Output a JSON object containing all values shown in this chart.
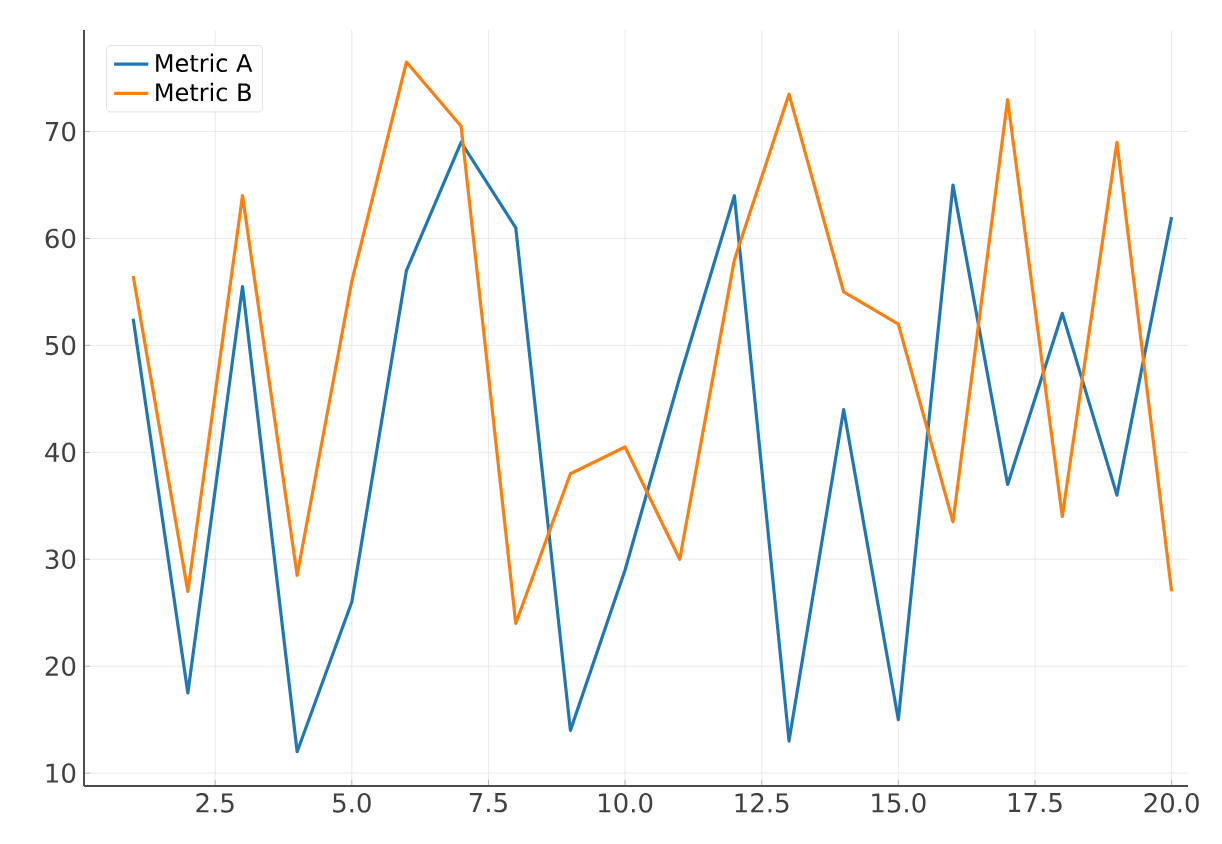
{
  "chart_data": {
    "type": "line",
    "x": [
      1,
      2,
      3,
      4,
      5,
      6,
      7,
      8,
      9,
      10,
      11,
      12,
      13,
      14,
      15,
      16,
      17,
      18,
      19,
      20
    ],
    "series": [
      {
        "name": "Metric A",
        "color": "#1f77b4",
        "values": [
          52.5,
          17.5,
          55.5,
          12,
          26,
          57,
          69,
          61,
          14,
          29,
          47,
          64,
          13,
          44,
          15,
          65,
          37,
          53,
          36,
          62
        ]
      },
      {
        "name": "Metric B",
        "color": "#ff7f0e",
        "values": [
          56.5,
          27,
          64,
          28.5,
          56,
          76.5,
          70.5,
          24,
          38,
          40.5,
          30,
          58,
          73.5,
          55,
          52,
          33.5,
          73,
          34,
          69,
          27
        ]
      }
    ],
    "xlim": [
      0.1,
      20.3
    ],
    "ylim": [
      8.8,
      79.5
    ],
    "xticks": [
      {
        "value": 2.5,
        "label": "2.5"
      },
      {
        "value": 5,
        "label": "5.0"
      },
      {
        "value": 7.5,
        "label": "7.5"
      },
      {
        "value": 10,
        "label": "10.0"
      },
      {
        "value": 12.5,
        "label": "12.5"
      },
      {
        "value": 15,
        "label": "15.0"
      },
      {
        "value": 17.5,
        "label": "17.5"
      },
      {
        "value": 20,
        "label": "20.0"
      }
    ],
    "yticks": [
      10,
      20,
      30,
      40,
      50,
      60,
      70
    ],
    "grid": true,
    "legend": "top left",
    "marker": "none",
    "line_style": "solid"
  }
}
